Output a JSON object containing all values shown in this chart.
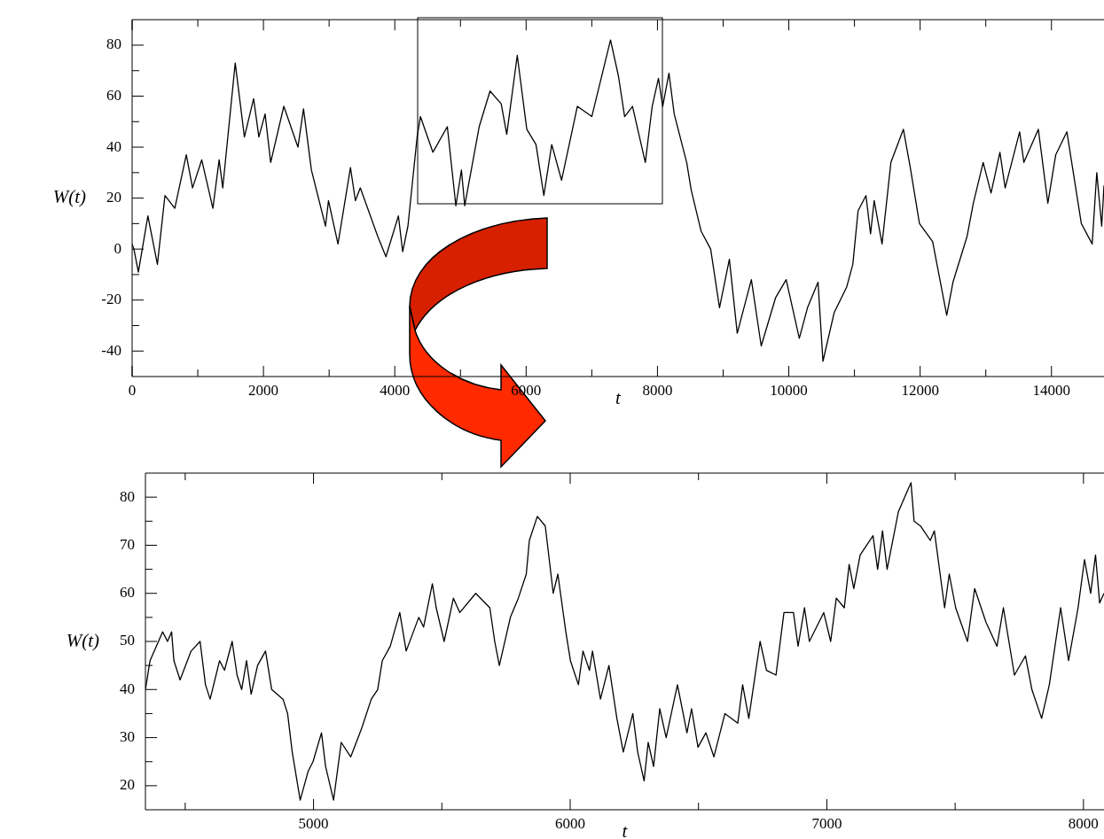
{
  "chart_data": [
    {
      "type": "line",
      "xlabel": "t",
      "ylabel": "W(t)",
      "color": "#000000",
      "marker": "none",
      "line_style": "solid",
      "grid": false,
      "x": [
        0,
        27,
        95,
        240,
        385,
        500,
        650,
        825,
        920,
        1060,
        1230,
        1325,
        1380,
        1570,
        1710,
        1850,
        1930,
        2025,
        2110,
        2310,
        2525,
        2610,
        2730,
        2945,
        2990,
        3135,
        3325,
        3400,
        3475,
        3740,
        3865,
        4055,
        4120,
        4200,
        4340,
        4390,
        4580,
        4800,
        4930,
        5015,
        5065,
        5285,
        5450,
        5620,
        5705,
        5865,
        6010,
        6150,
        6270,
        6390,
        6540,
        6780,
        7000,
        7285,
        7405,
        7500,
        7620,
        7815,
        7920,
        8015,
        8080,
        8175,
        8255,
        8445,
        8515,
        8665,
        8810,
        8945,
        9095,
        9215,
        9430,
        9580,
        9800,
        9960,
        10160,
        10285,
        10445,
        10520,
        10690,
        10880,
        10975,
        11055,
        11175,
        11245,
        11300,
        11420,
        11555,
        11745,
        11850,
        11990,
        12190,
        12405,
        12500,
        12715,
        12810,
        12960,
        13080,
        13215,
        13295,
        13515,
        13580,
        13800,
        13945,
        14065,
        14235,
        14455,
        14620,
        14690,
        14765,
        14800
      ],
      "values": [
        2,
        0,
        -9,
        13,
        -6,
        21,
        16,
        37,
        24,
        35,
        16,
        35,
        24,
        73,
        44,
        59,
        44,
        53,
        34,
        56,
        40,
        55,
        31,
        9,
        19,
        2,
        32,
        19,
        24,
        5,
        -3,
        13,
        -1,
        9,
        44,
        52,
        38,
        48,
        17,
        31,
        17,
        48,
        62,
        57,
        45,
        76,
        47,
        41,
        21,
        41,
        27,
        56,
        52,
        82,
        68,
        52,
        56,
        34,
        56,
        67,
        56,
        69,
        53,
        34,
        23,
        7,
        0,
        -23,
        -4,
        -33,
        -12,
        -38,
        -19,
        -12,
        -35,
        -23,
        -13,
        -44,
        -25,
        -15,
        -6,
        15,
        21,
        6,
        19,
        2,
        34,
        47,
        32,
        10,
        3,
        -26,
        -13,
        5,
        18,
        34,
        22,
        38,
        24,
        46,
        34,
        47,
        18,
        37,
        46,
        10,
        2,
        30,
        9,
        25
      ],
      "xlim": [
        0,
        14800
      ],
      "ylim": [
        -50,
        90
      ],
      "xticks": [
        0,
        {
          "value": 1000,
          "label": null
        },
        2000,
        {
          "value": 3000,
          "label": null
        },
        4000,
        {
          "value": 5000,
          "label": null
        },
        6000,
        {
          "value": 7000,
          "label": null
        },
        8000,
        {
          "value": 9000,
          "label": null
        },
        10000,
        {
          "value": 11000,
          "label": null
        },
        12000,
        {
          "value": 13000,
          "label": null
        },
        14000
      ],
      "yticks": [
        -40,
        {
          "value": -30,
          "label": null
        },
        -20,
        {
          "value": -10,
          "label": null
        },
        0,
        {
          "value": 10,
          "label": null
        },
        20,
        {
          "value": 30,
          "label": null
        },
        40,
        {
          "value": 50,
          "label": null
        },
        60,
        {
          "value": 70,
          "label": null
        },
        80
      ]
    },
    {
      "type": "line",
      "xlabel": "t",
      "ylabel": "W(t)",
      "color": "#000000",
      "marker": "none",
      "line_style": "solid",
      "grid": false,
      "x": [
        4345,
        4363,
        4412,
        4431,
        4447,
        4456,
        4480,
        4523,
        4558,
        4579,
        4597,
        4634,
        4653,
        4683,
        4702,
        4720,
        4739,
        4757,
        4782,
        4813,
        4837,
        4881,
        4899,
        4917,
        4948,
        4979,
        4998,
        5031,
        5047,
        5078,
        5108,
        5145,
        5188,
        5225,
        5250,
        5268,
        5299,
        5336,
        5361,
        5410,
        5429,
        5463,
        5478,
        5509,
        5545,
        5570,
        5632,
        5687,
        5706,
        5724,
        5767,
        5798,
        5829,
        5841,
        5872,
        5903,
        5934,
        5952,
        5983,
        6001,
        6032,
        6050,
        6075,
        6087,
        6118,
        6151,
        6182,
        6207,
        6244,
        6263,
        6288,
        6304,
        6325,
        6349,
        6374,
        6418,
        6455,
        6473,
        6498,
        6529,
        6560,
        6603,
        6653,
        6672,
        6696,
        6740,
        6765,
        6802,
        6833,
        6870,
        6888,
        6913,
        6932,
        6988,
        7015,
        7037,
        7068,
        7087,
        7105,
        7130,
        7180,
        7198,
        7217,
        7235,
        7279,
        7328,
        7340,
        7365,
        7403,
        7419,
        7434,
        7459,
        7477,
        7502,
        7548,
        7576,
        7620,
        7663,
        7688,
        7731,
        7774,
        7799,
        7837,
        7867,
        7911,
        7942,
        7979,
        8004,
        8028,
        8047,
        8063,
        8080
      ],
      "values": [
        40,
        46,
        52,
        50,
        52,
        46,
        42,
        48,
        50,
        41,
        38,
        46,
        44,
        50,
        43,
        40,
        46,
        39,
        45,
        48,
        40,
        38,
        35,
        27,
        17,
        23,
        25,
        31,
        24,
        17,
        29,
        26,
        32,
        38,
        40,
        46,
        49,
        56,
        48,
        55,
        53,
        62,
        57,
        50,
        59,
        56,
        60,
        57,
        50,
        45,
        55,
        59,
        64,
        71,
        76,
        74,
        60,
        64,
        52,
        46,
        41,
        48,
        44,
        48,
        38,
        45,
        34,
        27,
        35,
        27,
        21,
        29,
        24,
        36,
        30,
        41,
        31,
        36,
        28,
        31,
        26,
        35,
        33,
        41,
        34,
        50,
        44,
        43,
        56,
        56,
        49,
        57,
        50,
        56,
        50,
        59,
        57,
        66,
        61,
        68,
        72,
        65,
        73,
        65,
        77,
        83,
        75,
        74,
        71,
        73,
        67,
        57,
        64,
        57,
        50,
        61,
        54,
        49,
        57,
        43,
        47,
        40,
        34,
        41,
        57,
        46,
        57,
        67,
        60,
        68,
        58,
        60
      ],
      "xlim": [
        4345,
        8080
      ],
      "ylim": [
        15,
        85
      ],
      "xticks": [
        {
          "value": 4500,
          "label": null
        },
        5000,
        {
          "value": 5500,
          "label": null
        },
        6000,
        {
          "value": 6500,
          "label": null
        },
        7000,
        {
          "value": 7500,
          "label": null
        },
        8000
      ],
      "yticks": [
        20,
        {
          "value": 25,
          "label": null
        },
        30,
        {
          "value": 35,
          "label": null
        },
        40,
        {
          "value": 45,
          "label": null
        },
        50,
        {
          "value": 55,
          "label": null
        },
        60,
        {
          "value": 65,
          "label": null
        },
        70,
        {
          "value": 75,
          "label": null
        },
        80
      ]
    }
  ]
}
